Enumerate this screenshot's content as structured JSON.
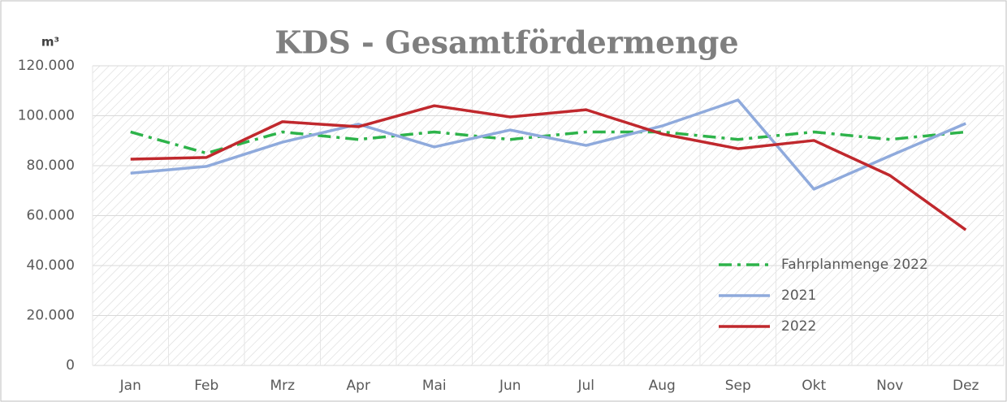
{
  "chart_data": {
    "type": "line",
    "title": "KDS - Gesamtfördermenge",
    "y_unit": "m³",
    "categories": [
      "Jan",
      "Feb",
      "Mrz",
      "Apr",
      "Mai",
      "Jun",
      "Jul",
      "Aug",
      "Sep",
      "Okt",
      "Nov",
      "Dez"
    ],
    "series": [
      {
        "name": "Fahrplanmenge 2022",
        "color": "#2db34a",
        "dash": true,
        "values": [
          93500,
          85000,
          93500,
          90500,
          93500,
          90500,
          93500,
          93500,
          90500,
          93500,
          90500,
          93500
        ]
      },
      {
        "name": "2021",
        "color": "#8faadc",
        "values": [
          77000,
          79700,
          89400,
          96600,
          87500,
          94300,
          88100,
          95900,
          106300,
          70600,
          83900,
          96900
        ]
      },
      {
        "name": "2022",
        "color": "#c0282d",
        "values": [
          82600,
          83300,
          97600,
          95600,
          104000,
          99500,
          102400,
          92700,
          86800,
          90100,
          76100,
          54300
        ]
      }
    ],
    "ylim": [
      0,
      120000
    ],
    "yticks": [
      0,
      {
        "value": 20000,
        "label": "20.000"
      },
      {
        "value": 40000,
        "label": "40.000"
      },
      {
        "value": 60000,
        "label": "60.000"
      },
      {
        "value": 80000,
        "label": "80.000"
      },
      {
        "value": 100000,
        "label": "100.000"
      },
      {
        "value": 120000,
        "label": "120.000"
      }
    ],
    "grid": true,
    "legend": "bottom-right"
  }
}
